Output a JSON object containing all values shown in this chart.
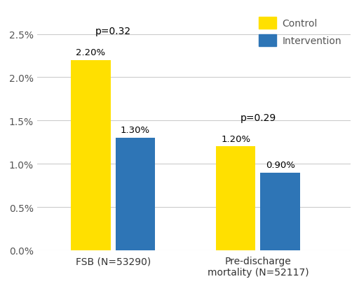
{
  "categories": [
    "FSB (N=53290)",
    "Pre-discharge\nmortality (N=52117)"
  ],
  "control_values": [
    0.022,
    0.012
  ],
  "intervention_values": [
    0.013,
    0.009
  ],
  "control_labels": [
    "2.20%",
    "1.20%"
  ],
  "intervention_labels": [
    "1.30%",
    "0.90%"
  ],
  "p_values": [
    "p=0.32",
    "p=0.29"
  ],
  "control_color": "#FFE000",
  "intervention_color": "#2E75B6",
  "ylim": [
    0,
    0.028
  ],
  "yticks": [
    0.0,
    0.005,
    0.01,
    0.015,
    0.02,
    0.025
  ],
  "ytick_labels": [
    "0.0%",
    "0.5%",
    "1.0%",
    "1.5%",
    "2.0%",
    "2.5%"
  ],
  "legend_control": "Control",
  "legend_intervention": "Intervention",
  "bar_width": 0.12,
  "group_centers": [
    0.28,
    0.72
  ],
  "xlim": [
    0.05,
    1.0
  ],
  "background_color": "#ffffff",
  "grid_color": "#cccccc",
  "tick_fontsize": 10,
  "bar_label_fontsize": 9.5,
  "p_label_fontsize": 10,
  "legend_fontsize": 10,
  "xtick_fontsize": 10
}
